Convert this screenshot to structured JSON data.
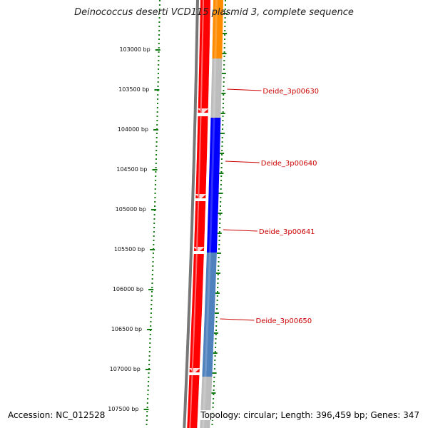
{
  "title": "Deinococcus deserti VCD115 plasmid 3, complete sequence",
  "accession_label": "Accession: NC_012528",
  "summary_label": "Topology: circular; Length: 396,459 bp; Genes: 347",
  "colors": {
    "backbone": "#777777",
    "tick": "#117a11",
    "label": "#cc0000",
    "cds_forward": "#ff0000",
    "gene_orange": "#ff8c00",
    "gene_gray": "#bdbdbd",
    "gene_blue": "#0000ff",
    "gene_steelblue": "#4f81bd"
  },
  "positions": [
    {
      "bp": 103000,
      "label": "103000 bp"
    },
    {
      "bp": 103500,
      "label": "103500 bp"
    },
    {
      "bp": 104000,
      "label": "104000 bp"
    },
    {
      "bp": 104500,
      "label": "104500 bp"
    },
    {
      "bp": 105000,
      "label": "105000 bp"
    },
    {
      "bp": 105500,
      "label": "105500 bp"
    },
    {
      "bp": 106000,
      "label": "106000 bp"
    },
    {
      "bp": 106500,
      "label": "106500 bp"
    },
    {
      "bp": 107000,
      "label": "107000 bp"
    },
    {
      "bp": 107500,
      "label": "107500 bp"
    }
  ],
  "genes": [
    {
      "name": "Deide_3p00630",
      "start": 103100,
      "end": 103850
    },
    {
      "name": "Deide_3p00640",
      "start": 103850,
      "end": 104900
    },
    {
      "name": "Deide_3p00641",
      "start": 104900,
      "end": 105550
    },
    {
      "name": "Deide_3p00650",
      "start": 105550,
      "end": 107200
    }
  ]
}
